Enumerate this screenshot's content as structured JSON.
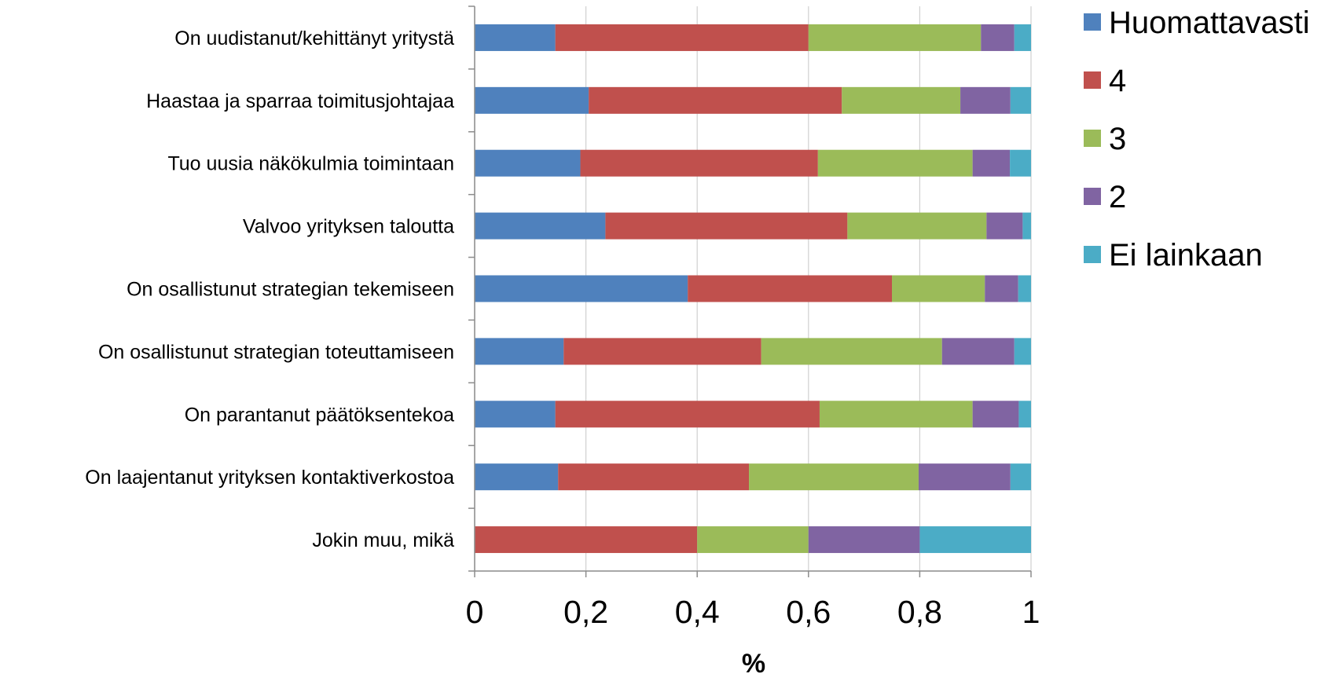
{
  "chart_data": {
    "type": "bar",
    "orientation": "horizontal",
    "stacked": true,
    "title": "",
    "xlabel": "%",
    "ylabel": "",
    "xlim": [
      0,
      1
    ],
    "x_ticks": [
      "0",
      "0,2",
      "0,4",
      "0,6",
      "0,8",
      "1"
    ],
    "x_tick_values": [
      0,
      0.2,
      0.4,
      0.6,
      0.8,
      1
    ],
    "grid": false,
    "legend_position": "top-right",
    "categories": [
      "On uudistanut/kehittänyt yritystä",
      "Haastaa ja sparraa toimitusjohtajaa",
      "Tuo uusia näkökulmia toimintaan",
      "Valvoo yrityksen taloutta",
      "On osallistunut strategian tekemiseen",
      "On osallistunut strategian toteuttamiseen",
      "On parantanut päätöksentekoa",
      "On laajentanut yrityksen kontaktiverkostoa",
      "Jokin muu, mikä"
    ],
    "series": [
      {
        "name": "Huomattavasti",
        "color": "#4F81BD",
        "values": [
          0.145,
          0.205,
          0.19,
          0.235,
          0.383,
          0.16,
          0.145,
          0.15,
          0.0
        ]
      },
      {
        "name": "4",
        "color": "#C0504D",
        "values": [
          0.455,
          0.455,
          0.427,
          0.435,
          0.367,
          0.355,
          0.475,
          0.343,
          0.4
        ]
      },
      {
        "name": "3",
        "color": "#9BBB59",
        "values": [
          0.31,
          0.213,
          0.278,
          0.25,
          0.167,
          0.325,
          0.275,
          0.305,
          0.2
        ]
      },
      {
        "name": "2",
        "color": "#8064A2",
        "values": [
          0.06,
          0.09,
          0.067,
          0.065,
          0.06,
          0.13,
          0.083,
          0.165,
          0.2
        ]
      },
      {
        "name": "Ei lainkaan",
        "color": "#4BACC6",
        "values": [
          0.03,
          0.037,
          0.038,
          0.015,
          0.023,
          0.03,
          0.022,
          0.037,
          0.2
        ]
      }
    ]
  }
}
